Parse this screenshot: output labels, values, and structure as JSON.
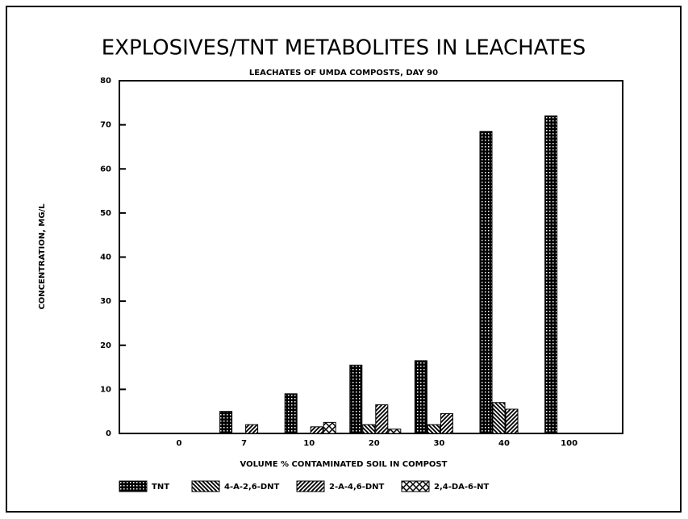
{
  "chart_data": {
    "type": "bar",
    "title": "EXPLOSIVES/TNT METABOLITES IN LEACHATES",
    "subtitle": "LEACHATES OF UMDA COMPOSTS, DAY 90",
    "x_label": "VOLUME % CONTAMINATED SOIL IN COMPOST",
    "y_label": "CONCENTRATION, MG/L",
    "categories": [
      "0",
      "7",
      "10",
      "20",
      "30",
      "40",
      "100"
    ],
    "series": [
      {
        "name": "TNT",
        "color": "#000000",
        "values": [
          0,
          5,
          9,
          15.5,
          16.5,
          68.5,
          72
        ]
      },
      {
        "name": "4-A-2,6-DNT",
        "color": "#000000",
        "values": [
          0,
          0,
          0,
          2,
          2,
          7,
          0
        ]
      },
      {
        "name": "2-A-4,6-DNT",
        "color": "#000000",
        "values": [
          0,
          2,
          1.5,
          6.5,
          4.5,
          5.5,
          0
        ]
      },
      {
        "name": "2,4-DA-6-NT",
        "color": "#000000",
        "values": [
          0,
          0,
          2.5,
          1,
          0,
          0,
          0
        ]
      }
    ],
    "ylim": [
      0,
      80
    ],
    "yticks": [
      0,
      10,
      20,
      30,
      40,
      50,
      60,
      70,
      80
    ]
  }
}
